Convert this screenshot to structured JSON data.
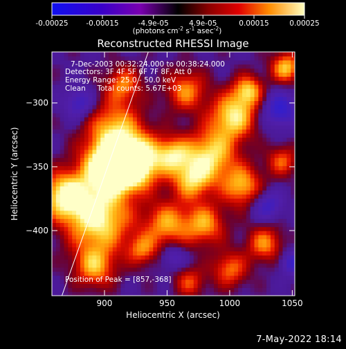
{
  "colorbar": {
    "ticks": [
      "-0.00025",
      "-0.00015",
      "-4.9e-05",
      "4.9e-05",
      "0.00015",
      "0.00025"
    ],
    "tick_values": [
      -0.00025,
      -0.00015,
      -4.9e-05,
      4.9e-05,
      0.00015,
      0.00025
    ],
    "min": -0.00025,
    "max": 0.00025,
    "units_main": "(photons cm",
    "units_exp1": "-2",
    "units_mid": " s",
    "units_exp2": "-1",
    "units_tail": " asec",
    "units_exp3": "-2",
    "units_close": ")"
  },
  "chart_data": {
    "type": "heatmap",
    "title": "Reconstructed RHESSI Image",
    "xlabel": "Heliocentric X (arcsec)",
    "ylabel": "Heliocentric Y (arcsec)",
    "xlim": [
      858,
      1052
    ],
    "ylim": [
      -451,
      -260
    ],
    "x_ticks": [
      900,
      950,
      1000,
      1050
    ],
    "y_ticks": [
      -300,
      -350,
      -400
    ],
    "annotations": {
      "time": "7-Dec-2003 00:32:24.000 to 00:38:24.000",
      "detectors": "Detectors: 3F 4F 5F 6F 7F 8F, Att 0",
      "energy": "Energy Range: 25.0 - 50.0 keV",
      "clean": "Clean     Total counts: 5.67E+03",
      "peak": "Position of Peak = [857,-368]"
    },
    "limb_line": [
      [
        866,
        -451
      ],
      [
        935,
        -260
      ]
    ],
    "blobs": [
      {
        "x": 895,
        "y": -390,
        "r": 26,
        "v": 1.0
      },
      {
        "x": 868,
        "y": -372,
        "r": 18,
        "v": 0.95
      },
      {
        "x": 900,
        "y": -350,
        "r": 20,
        "v": 0.9
      },
      {
        "x": 908,
        "y": -320,
        "r": 22,
        "v": 0.75
      },
      {
        "x": 915,
        "y": -350,
        "r": 18,
        "v": 0.85
      },
      {
        "x": 928,
        "y": -345,
        "r": 20,
        "v": 0.9
      },
      {
        "x": 915,
        "y": -285,
        "r": 14,
        "v": 0.6
      },
      {
        "x": 892,
        "y": -428,
        "r": 16,
        "v": 0.7
      },
      {
        "x": 955,
        "y": -340,
        "r": 14,
        "v": 0.7
      },
      {
        "x": 965,
        "y": -290,
        "r": 16,
        "v": 0.65
      },
      {
        "x": 950,
        "y": -395,
        "r": 18,
        "v": 0.7
      },
      {
        "x": 970,
        "y": -360,
        "r": 16,
        "v": 0.75
      },
      {
        "x": 985,
        "y": -340,
        "r": 20,
        "v": 0.85
      },
      {
        "x": 980,
        "y": -395,
        "r": 16,
        "v": 0.7
      },
      {
        "x": 1003,
        "y": -310,
        "r": 18,
        "v": 0.9
      },
      {
        "x": 1015,
        "y": -290,
        "r": 12,
        "v": 0.75
      },
      {
        "x": 1010,
        "y": -365,
        "r": 16,
        "v": 0.75
      },
      {
        "x": 1028,
        "y": -410,
        "r": 14,
        "v": 0.65
      },
      {
        "x": 1000,
        "y": -430,
        "r": 14,
        "v": 0.6
      },
      {
        "x": 1045,
        "y": -272,
        "r": 12,
        "v": 0.8
      },
      {
        "x": 1042,
        "y": -345,
        "r": 12,
        "v": 0.55
      },
      {
        "x": 968,
        "y": -440,
        "r": 12,
        "v": 0.5
      },
      {
        "x": 930,
        "y": -415,
        "r": 12,
        "v": 0.55
      }
    ],
    "negative_spots": [
      {
        "x": 1040,
        "y": -305,
        "r": 14,
        "v": -0.6
      },
      {
        "x": 1030,
        "y": -380,
        "r": 12,
        "v": -0.5
      },
      {
        "x": 955,
        "y": -420,
        "r": 10,
        "v": -0.4
      },
      {
        "x": 880,
        "y": -300,
        "r": 12,
        "v": -0.5
      },
      {
        "x": 1050,
        "y": -425,
        "r": 10,
        "v": -0.5
      }
    ]
  },
  "footer": {
    "date": "7-May-2022 18:14"
  }
}
